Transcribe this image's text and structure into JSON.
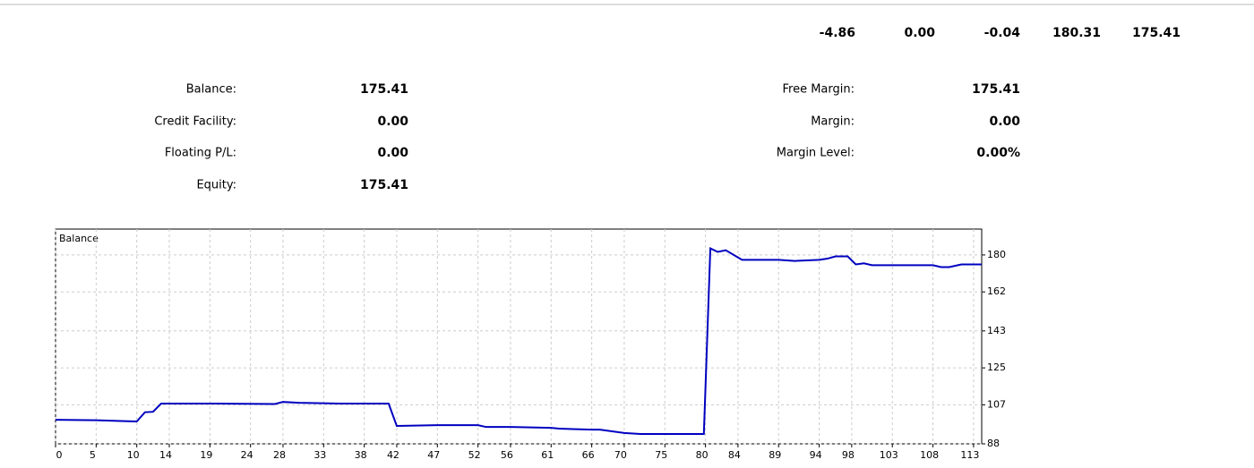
{
  "totals": [
    "-4.86",
    "0.00",
    "-0.04",
    "180.31",
    "175.41"
  ],
  "summary": {
    "left": [
      {
        "label": "Balance:",
        "value": "175.41"
      },
      {
        "label": "Credit Facility:",
        "value": "0.00"
      },
      {
        "label": "Floating P/L:",
        "value": "0.00"
      },
      {
        "label": "Equity:",
        "value": "175.41"
      }
    ],
    "right": [
      {
        "label": "Free Margin:",
        "value": "175.41"
      },
      {
        "label": "Margin:",
        "value": "0.00"
      },
      {
        "label": "Margin Level:",
        "value": "0.00%"
      }
    ]
  },
  "chart_data": {
    "type": "line",
    "title": "Balance",
    "x": [
      0,
      5,
      9,
      10,
      11,
      12,
      13,
      20,
      27,
      28,
      30,
      35,
      41,
      42,
      47,
      52,
      53,
      56,
      61,
      62,
      66,
      67,
      70,
      72,
      79.8,
      80.6,
      81.5,
      82.5,
      84.5,
      89,
      91,
      94,
      95,
      96,
      97.5,
      98.5,
      99.5,
      100.5,
      108,
      109,
      110,
      111.5,
      114
    ],
    "series": [
      {
        "name": "Balance",
        "color": "#0000c0",
        "values": [
          99.7,
          99.5,
          99.0,
          98.9,
          103.4,
          103.6,
          107.6,
          107.6,
          107.4,
          108.4,
          108.0,
          107.6,
          107.6,
          96.7,
          97.1,
          97.1,
          96.2,
          96.2,
          95.8,
          95.4,
          94.9,
          94.9,
          93.3,
          92.8,
          92.8,
          183.2,
          181.5,
          182.3,
          177.6,
          177.6,
          177.1,
          177.6,
          178.2,
          179.3,
          179.3,
          175.4,
          175.9,
          175.0,
          175.0,
          174.1,
          174.1,
          175.4,
          175.4
        ]
      }
    ],
    "xlim": [
      0,
      114
    ],
    "ylim": [
      88,
      192.6
    ],
    "xticks": [
      0,
      5,
      10,
      14,
      19,
      24,
      28,
      33,
      38,
      42,
      47,
      52,
      56,
      61,
      66,
      70,
      75,
      80,
      84,
      89,
      94,
      98,
      103,
      108,
      113
    ],
    "yticks": [
      88,
      107,
      125,
      143,
      162,
      180
    ],
    "grid": true
  }
}
